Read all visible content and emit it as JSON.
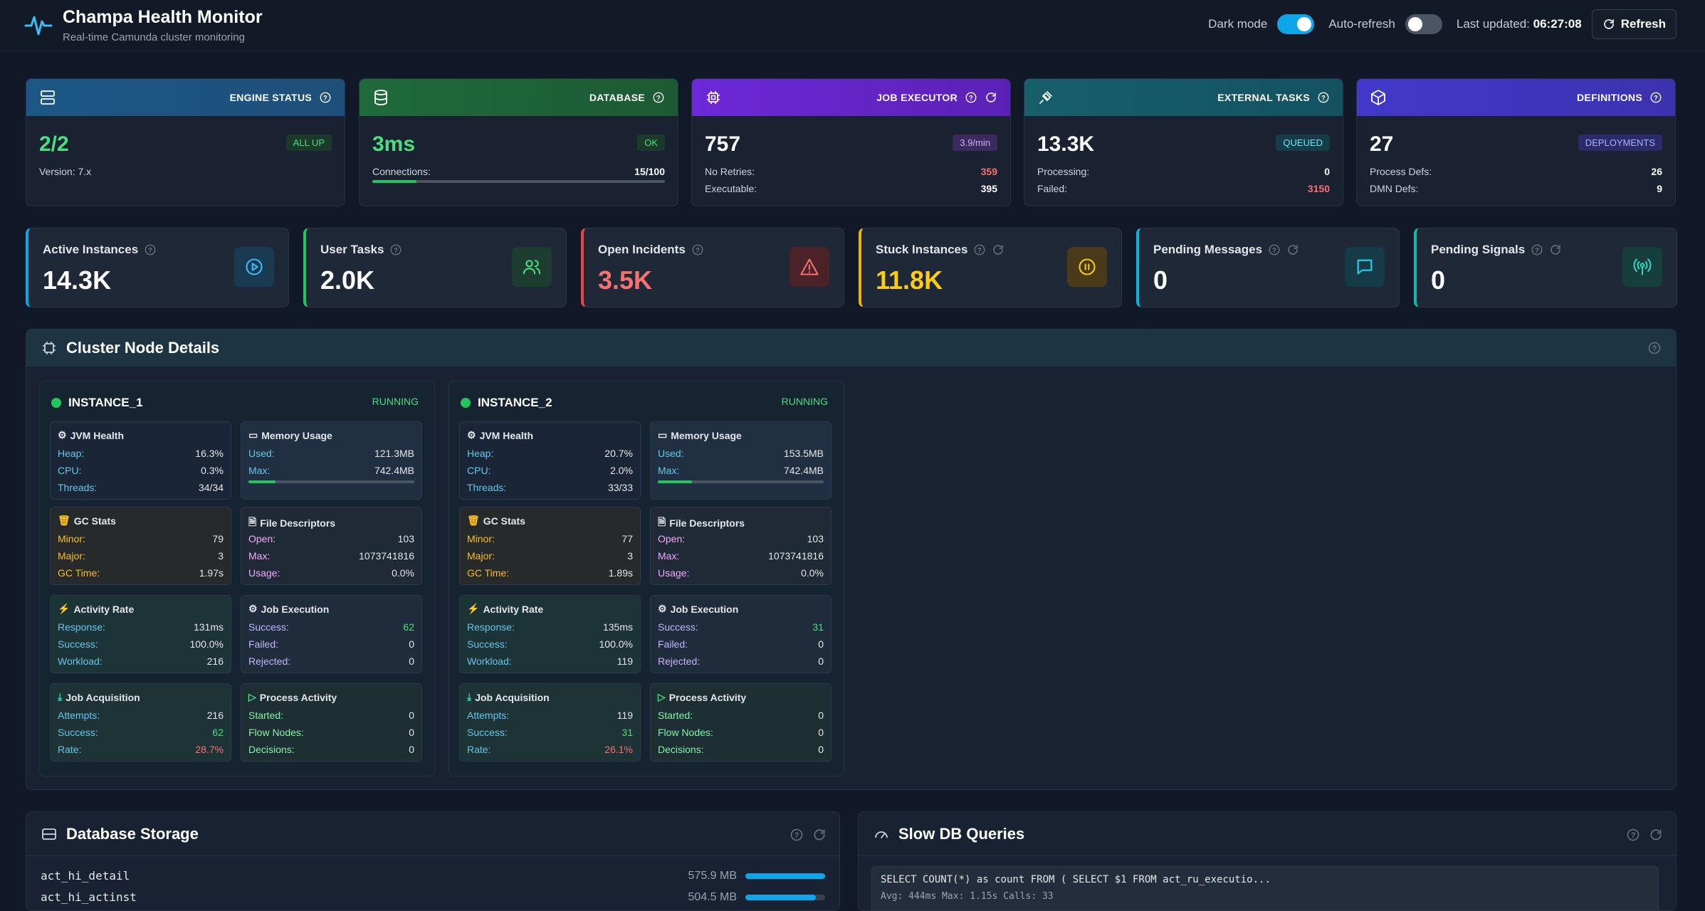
{
  "header": {
    "title": "Champa Health Monitor",
    "subtitle": "Real-time Camunda cluster monitoring",
    "dark_mode_label": "Dark mode",
    "dark_mode_on": true,
    "auto_refresh_label": "Auto-refresh",
    "auto_refresh_on": false,
    "last_updated_label": "Last updated:",
    "last_updated_value": "06:27:08",
    "refresh_label": "Refresh"
  },
  "status_cards": [
    {
      "title": "ENGINE STATUS",
      "value": "2/2",
      "badge": "ALL UP",
      "rows": [
        {
          "label": "Version: 7.x",
          "value": ""
        }
      ]
    },
    {
      "title": "DATABASE",
      "value": "3ms",
      "badge": "OK",
      "rows": [
        {
          "label": "Connections:",
          "value": "15/100"
        }
      ],
      "progress": 0.15
    },
    {
      "title": "JOB EXECUTOR",
      "value": "757",
      "badge": "3.9/min",
      "rows": [
        {
          "label": "No Retries:",
          "value": "359"
        },
        {
          "label": "Executable:",
          "value": "395"
        }
      ]
    },
    {
      "title": "EXTERNAL TASKS",
      "value": "13.3K",
      "badge": "QUEUED",
      "rows": [
        {
          "label": "Processing:",
          "value": "0"
        },
        {
          "label": "Failed:",
          "value": "3150"
        }
      ]
    },
    {
      "title": "DEFINITIONS",
      "value": "27",
      "badge": "DEPLOYMENTS",
      "rows": [
        {
          "label": "Process Defs:",
          "value": "26"
        },
        {
          "label": "DMN Defs:",
          "value": "9"
        }
      ]
    }
  ],
  "metric_cards": [
    {
      "label": "Active Instances",
      "value": "14.3K",
      "icon": "play-circle-icon"
    },
    {
      "label": "User Tasks",
      "value": "2.0K",
      "icon": "users-icon"
    },
    {
      "label": "Open Incidents",
      "value": "3.5K",
      "icon": "warning-icon"
    },
    {
      "label": "Stuck Instances",
      "value": "11.8K",
      "icon": "pause-circle-icon"
    },
    {
      "label": "Pending Messages",
      "value": "0",
      "icon": "message-icon"
    },
    {
      "label": "Pending Signals",
      "value": "0",
      "icon": "signal-icon"
    }
  ],
  "cluster": {
    "title": "Cluster Node Details",
    "instances": [
      {
        "name": "INSTANCE_1",
        "status": "RUNNING",
        "jvm": {
          "title": "JVM Health",
          "heap_label": "Heap:",
          "heap": "16.3%",
          "cpu_label": "CPU:",
          "cpu": "0.3%",
          "threads_label": "Threads:",
          "threads": "34/34"
        },
        "memory": {
          "title": "Memory Usage",
          "used_label": "Used:",
          "used": "121.3MB",
          "max_label": "Max:",
          "max": "742.4MB",
          "fraction": 0.163
        },
        "gc": {
          "title": "GC Stats",
          "minor_label": "Minor:",
          "minor": "79",
          "major_label": "Major:",
          "major": "3",
          "time_label": "GC Time:",
          "time": "1.97s"
        },
        "fd": {
          "title": "File Descriptors",
          "open_label": "Open:",
          "open": "103",
          "max_label": "Max:",
          "max": "1073741816",
          "usage_label": "Usage:",
          "usage": "0.0%"
        },
        "activity": {
          "title": "Activity Rate",
          "response_label": "Response:",
          "response": "131ms",
          "success_label": "Success:",
          "success": "100.0%",
          "workload_label": "Workload:",
          "workload": "216"
        },
        "jobexec": {
          "title": "Job Execution",
          "success_label": "Success:",
          "success": "62",
          "failed_label": "Failed:",
          "failed": "0",
          "rejected_label": "Rejected:",
          "rejected": "0"
        },
        "acq": {
          "title": "Job Acquisition",
          "attempts_label": "Attempts:",
          "attempts": "216",
          "success_label": "Success:",
          "success": "62",
          "rate_label": "Rate:",
          "rate": "28.7%"
        },
        "proc": {
          "title": "Process Activity",
          "started_label": "Started:",
          "started": "0",
          "flow_label": "Flow Nodes:",
          "flow": "0",
          "decisions_label": "Decisions:",
          "decisions": "0"
        }
      },
      {
        "name": "INSTANCE_2",
        "status": "RUNNING",
        "jvm": {
          "title": "JVM Health",
          "heap_label": "Heap:",
          "heap": "20.7%",
          "cpu_label": "CPU:",
          "cpu": "2.0%",
          "threads_label": "Threads:",
          "threads": "33/33"
        },
        "memory": {
          "title": "Memory Usage",
          "used_label": "Used:",
          "used": "153.5MB",
          "max_label": "Max:",
          "max": "742.4MB",
          "fraction": 0.207
        },
        "gc": {
          "title": "GC Stats",
          "minor_label": "Minor:",
          "minor": "77",
          "major_label": "Major:",
          "major": "3",
          "time_label": "GC Time:",
          "time": "1.89s"
        },
        "fd": {
          "title": "File Descriptors",
          "open_label": "Open:",
          "open": "103",
          "max_label": "Max:",
          "max": "1073741816",
          "usage_label": "Usage:",
          "usage": "0.0%"
        },
        "activity": {
          "title": "Activity Rate",
          "response_label": "Response:",
          "response": "135ms",
          "success_label": "Success:",
          "success": "100.0%",
          "workload_label": "Workload:",
          "workload": "119"
        },
        "jobexec": {
          "title": "Job Execution",
          "success_label": "Success:",
          "success": "31",
          "failed_label": "Failed:",
          "failed": "0",
          "rejected_label": "Rejected:",
          "rejected": "0"
        },
        "acq": {
          "title": "Job Acquisition",
          "attempts_label": "Attempts:",
          "attempts": "119",
          "success_label": "Success:",
          "success": "31",
          "rate_label": "Rate:",
          "rate": "26.1%"
        },
        "proc": {
          "title": "Process Activity",
          "started_label": "Started:",
          "started": "0",
          "flow_label": "Flow Nodes:",
          "flow": "0",
          "decisions_label": "Decisions:",
          "decisions": "0"
        }
      }
    ]
  },
  "db_storage": {
    "title": "Database Storage",
    "rows": [
      {
        "name": "act_hi_detail",
        "size": "575.9 MB",
        "fraction": 1.0
      },
      {
        "name": "act_hi_actinst",
        "size": "504.5 MB",
        "fraction": 0.88
      }
    ]
  },
  "slow_queries": {
    "title": "Slow DB Queries",
    "items": [
      {
        "query": "SELECT COUNT(*) as count FROM ( SELECT $1 FROM act_ru_executio...",
        "meta": "Avg: 444ms   Max: 1.15s   Calls: 33"
      }
    ]
  },
  "colors": {
    "engine": "#1d5a86",
    "database": "#1f6b3a",
    "job_executor": "#6d28d9",
    "external_tasks": "#175f6b",
    "definitions": "#4338ca",
    "success": "#22c55e",
    "danger": "#f87171",
    "accent": "#0ea5e9"
  }
}
